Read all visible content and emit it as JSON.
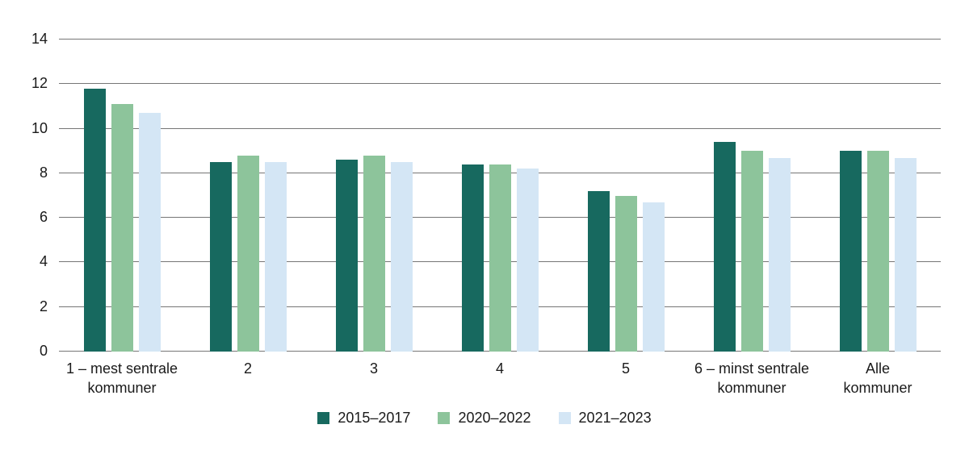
{
  "chart_data": {
    "type": "bar",
    "title": "",
    "xlabel": "",
    "ylabel": "",
    "ylim": [
      0,
      14
    ],
    "yticks": [
      0,
      2,
      4,
      6,
      8,
      10,
      12,
      14
    ],
    "grid": true,
    "legend_position": "bottom",
    "categories": [
      "1 – mest sentrale kommuner",
      "2",
      "3",
      "4",
      "5",
      "6 – minst sentrale kommuner",
      "Alle kommuner"
    ],
    "category_label_lines": [
      [
        "1 – mest sentrale",
        "kommuner"
      ],
      [
        "2"
      ],
      [
        "3"
      ],
      [
        "4"
      ],
      [
        "5"
      ],
      [
        "6 – minst sentrale",
        "kommuner"
      ],
      [
        "Alle",
        "kommuner"
      ]
    ],
    "series": [
      {
        "name": "2015–2017",
        "color": "#17695f",
        "values": [
          11.8,
          8.5,
          8.6,
          8.4,
          7.2,
          9.4,
          9.0
        ]
      },
      {
        "name": "2020–2022",
        "color": "#8dc49b",
        "values": [
          11.1,
          8.8,
          8.8,
          8.4,
          7.0,
          9.0,
          9.0
        ]
      },
      {
        "name": "2021–2023",
        "color": "#d4e6f5",
        "values": [
          10.7,
          8.5,
          8.5,
          8.2,
          6.7,
          8.7,
          8.7
        ]
      }
    ],
    "colors": {
      "gridline": "#767676",
      "axis_text": "#1a1a1a",
      "background": "#ffffff"
    }
  }
}
